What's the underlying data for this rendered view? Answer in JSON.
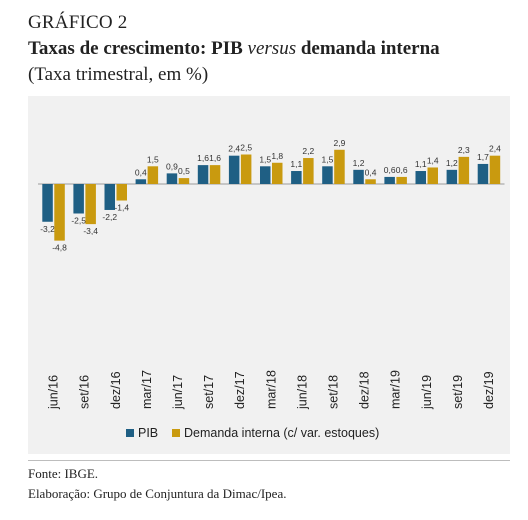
{
  "figure": {
    "label": "GRÁFICO 2",
    "title_part1": "Taxas de crescimento: PIB ",
    "title_italic": "versus",
    "title_part2": " demanda interna",
    "subtitle": "(Taxa trimestral, em %)"
  },
  "footer": {
    "source": "Fonte: IBGE.",
    "credit": "Elaboração: Grupo de Conjuntura da Dimac/Ipea."
  },
  "colors": {
    "pib": "#1f5f84",
    "demanda": "#c99a0f",
    "panel": "#f1f1f1"
  },
  "chart_data": {
    "type": "bar",
    "title": "Taxas de crescimento: PIB versus demanda interna",
    "subtitle": "(Taxa trimestral, em %)",
    "categories": [
      "jun/16",
      "set/16",
      "dez/16",
      "mar/17",
      "jun/17",
      "set/17",
      "dez/17",
      "mar/18",
      "jun/18",
      "set/18",
      "dez/18",
      "mar/19",
      "jun/19",
      "set/19",
      "dez/19"
    ],
    "series": [
      {
        "name": "PIB",
        "values": [
          -3.2,
          -2.5,
          -2.2,
          0.4,
          0.9,
          1.6,
          2.4,
          1.5,
          1.1,
          1.5,
          1.2,
          0.6,
          1.1,
          1.2,
          1.7
        ],
        "labels": [
          "-3,2",
          "-2,5",
          "-2,2",
          "0,4",
          "0,9",
          "1,6",
          "2,4",
          "1,5",
          "1,1",
          "1,5",
          "1,2",
          "0,6",
          "1,1",
          "1,2",
          "1,7"
        ]
      },
      {
        "name": "Demanda interna (c/ var. estoques)",
        "values": [
          -4.8,
          -3.4,
          -1.4,
          1.5,
          0.5,
          1.6,
          2.5,
          1.8,
          2.2,
          2.9,
          0.4,
          0.6,
          1.4,
          2.3,
          2.4
        ],
        "labels": [
          "-4,8",
          "-3,4",
          "-1,4",
          "1,5",
          "0,5",
          "1,6",
          "2,5",
          "1,8",
          "2,2",
          "2,9",
          "0,4",
          "0,6",
          "1,4",
          "2,3",
          "2,4"
        ]
      }
    ],
    "ylim": [
      -5.5,
      3.3
    ],
    "grid": false,
    "legend": "bottom-center"
  }
}
